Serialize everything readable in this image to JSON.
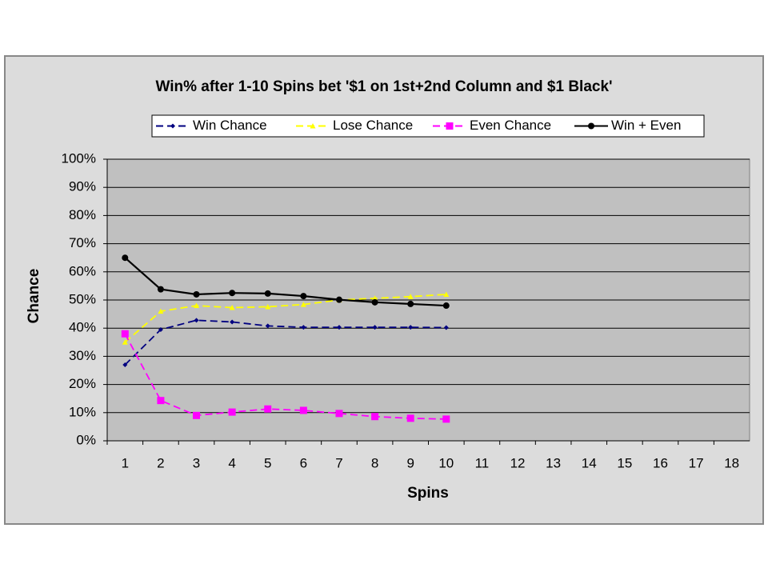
{
  "chart_data": {
    "type": "line",
    "title": "Win% after 1-10 Spins bet '$1 on 1st+2nd Column and $1 Black'",
    "x_label": "Spins",
    "y_label": "Chance",
    "categories": [
      "1",
      "2",
      "3",
      "4",
      "5",
      "6",
      "7",
      "8",
      "9",
      "10",
      "11",
      "12",
      "13",
      "14",
      "15",
      "16",
      "17",
      "18"
    ],
    "series": [
      {
        "name": "Win Chance",
        "color": "#000080",
        "marker": "diamond",
        "dashed": true,
        "values": [
          27,
          39.5,
          42.8,
          42.2,
          40.8,
          40.3,
          40.3,
          40.3,
          40.3,
          40.2,
          null,
          null,
          null,
          null,
          null,
          null,
          null,
          null
        ]
      },
      {
        "name": "Lose Chance",
        "color": "#ffff00",
        "marker": "triangle",
        "dashed": true,
        "values": [
          35,
          46,
          48,
          47.3,
          47.6,
          48.4,
          50,
          50.6,
          51.2,
          52,
          null,
          null,
          null,
          null,
          null,
          null,
          null,
          null
        ]
      },
      {
        "name": "Even Chance",
        "color": "#ff00ff",
        "marker": "square",
        "dashed": true,
        "values": [
          38,
          14.3,
          9,
          10.2,
          11.3,
          10.8,
          9.7,
          8.6,
          8,
          7.7,
          null,
          null,
          null,
          null,
          null,
          null,
          null,
          null
        ]
      },
      {
        "name": "Win + Even",
        "color": "#000000",
        "marker": "circle",
        "dashed": false,
        "values": [
          65,
          53.8,
          52,
          52.5,
          52.3,
          51.4,
          50.1,
          49.2,
          48.6,
          48,
          null,
          null,
          null,
          null,
          null,
          null,
          null,
          null
        ]
      }
    ],
    "ylim": [
      0,
      100
    ],
    "yticks": [
      {
        "value": 0,
        "label": "0%"
      },
      {
        "value": 10,
        "label": "10%"
      },
      {
        "value": 20,
        "label": "20%"
      },
      {
        "value": 30,
        "label": "30%"
      },
      {
        "value": 40,
        "label": "40%"
      },
      {
        "value": 50,
        "label": "50%"
      },
      {
        "value": 60,
        "label": "60%"
      },
      {
        "value": 70,
        "label": "70%"
      },
      {
        "value": 80,
        "label": "80%"
      },
      {
        "value": 90,
        "label": "90%"
      },
      {
        "value": 100,
        "label": "100%"
      }
    ],
    "grid": true,
    "legend": "top"
  }
}
